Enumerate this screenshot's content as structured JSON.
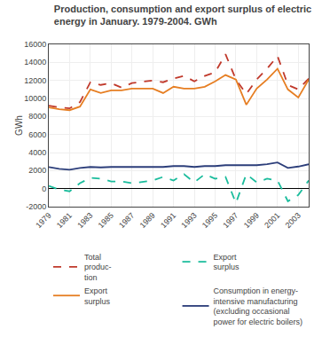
{
  "chart_data": {
    "type": "line",
    "title": "Production, consumption and export surplus of electric\nenergy in January. 1979-2004. GWh",
    "ylabel": "GWh",
    "x": [
      1979,
      1980,
      1981,
      1982,
      1983,
      1984,
      1985,
      1986,
      1987,
      1989,
      1990,
      1991,
      1992,
      1993,
      1994,
      1995,
      1996,
      1997,
      1998,
      1999,
      2000,
      2001,
      2002,
      2003,
      2004
    ],
    "series": [
      {
        "name": "Total\nproduc-\ntion",
        "color": "#c0392b",
        "line_style": "dashed",
        "values": [
          9200,
          9000,
          8900,
          9600,
          11800,
          11500,
          11700,
          11200,
          11700,
          12000,
          11800,
          12200,
          12500,
          11900,
          12500,
          12900,
          14900,
          12100,
          10500,
          12100,
          13300,
          14700,
          11500,
          11000,
          12200
        ]
      },
      {
        "name": "Export\nsurplus",
        "color": "#1abc9c",
        "line_style": "dashed",
        "values": [
          300,
          -100,
          -300,
          600,
          1200,
          1100,
          800,
          800,
          600,
          900,
          1300,
          900,
          1600,
          700,
          1600,
          1100,
          1300,
          -1600,
          1600,
          700,
          1100,
          900,
          -1400,
          -700,
          900
        ]
      },
      {
        "name": "Export\nsurplus",
        "color": "#e67e22",
        "line_style": "solid",
        "values": [
          9000,
          8800,
          8700,
          9100,
          11000,
          10600,
          10900,
          10900,
          11100,
          11100,
          10600,
          11300,
          11100,
          11100,
          11300,
          11900,
          12600,
          12100,
          9300,
          11100,
          12100,
          13300,
          11000,
          10100,
          12100
        ]
      },
      {
        "name": "Consumption in energy-\nintensive manufacturing\n(excluding occasional\npower for electric boilers)",
        "color": "#2c3e7a",
        "line_style": "solid",
        "values": [
          2400,
          2200,
          2100,
          2300,
          2400,
          2350,
          2400,
          2400,
          2350,
          2400,
          2400,
          2500,
          2500,
          2400,
          2500,
          2500,
          2600,
          2600,
          2600,
          2600,
          2700,
          2900,
          2300,
          2450,
          2700
        ]
      }
    ],
    "xlim": [
      1979,
      2004
    ],
    "xticks": [
      1979,
      1981,
      1983,
      1985,
      1987,
      1989,
      1991,
      1993,
      1995,
      1997,
      1999,
      2001,
      2003
    ],
    "ylim": [
      -2000,
      16000
    ],
    "yticks": [
      -2000,
      0,
      2000,
      4000,
      6000,
      8000,
      10000,
      12000,
      14000,
      16000
    ],
    "grid": true,
    "legend": "bottom"
  }
}
